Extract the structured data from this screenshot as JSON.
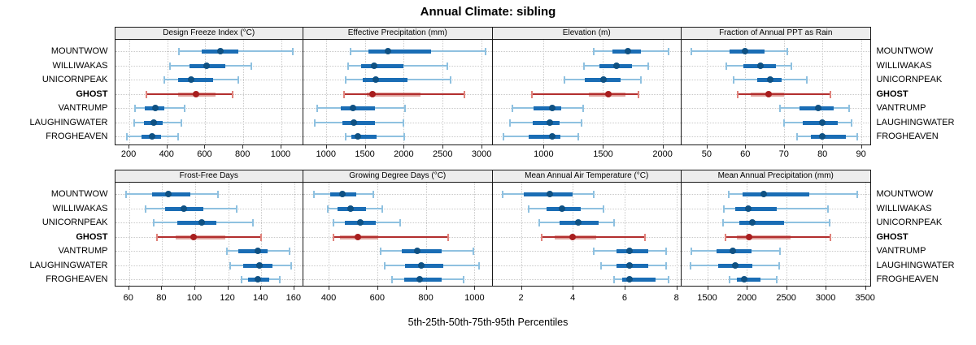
{
  "title": "Annual Climate: sibling",
  "caption": "5th-25th-50th-75th-95th Percentiles",
  "categories": [
    "MOUNTWOW",
    "WILLIWAKAS",
    "UNICORNPEAK",
    "GHOST",
    "VANTRUMP",
    "LAUGHINGWATER",
    "FROGHEAVEN"
  ],
  "highlight_category": "GHOST",
  "colors": {
    "blue_line": "#8fc1e0",
    "blue_cap": "#8fc1e0",
    "blue_box": "#1a6db5",
    "blue_dot": "#0f5183",
    "red_line": "#b22e2e",
    "red_cap": "#e0837c",
    "red_box": "#dfa09a",
    "red_dot": "#a81e1e",
    "grid": "#c9c9c9",
    "strip_bg": "#ededed",
    "border": "#1a1a1a"
  },
  "chart_data": {
    "type": "dot-interval-trellis",
    "percentile_labels": [
      "5th",
      "25th",
      "50th",
      "75th",
      "95th"
    ],
    "categories": [
      "MOUNTWOW",
      "WILLIWAKAS",
      "UNICORNPEAK",
      "GHOST",
      "VANTRUMP",
      "LAUGHINGWATER",
      "FROGHEAVEN"
    ],
    "panels": [
      {
        "title": "Design Freeze Index (°C)",
        "row": 0,
        "col": 0,
        "xlim": [
          125,
          1120
        ],
        "ticks": [
          200,
          400,
          600,
          800,
          1000
        ],
        "series": [
          {
            "name": "MOUNTWOW",
            "values": [
              460,
              580,
              680,
              775,
              1060
            ]
          },
          {
            "name": "WILLIWAKAS",
            "values": [
              415,
              515,
              605,
              705,
              840
            ]
          },
          {
            "name": "UNICORNPEAK",
            "values": [
              385,
              455,
              525,
              640,
              775
            ]
          },
          {
            "name": "GHOST",
            "values": [
              290,
              455,
              550,
              655,
              745
            ]
          },
          {
            "name": "VANTRUMP",
            "values": [
              230,
              280,
              335,
              385,
              490
            ]
          },
          {
            "name": "LAUGHINGWATER",
            "values": [
              225,
              275,
              330,
              375,
              475
            ]
          },
          {
            "name": "FROGHEAVEN",
            "values": [
              185,
              265,
              320,
              365,
              455
            ]
          }
        ]
      },
      {
        "title": "Effective Precipitation (mm)",
        "row": 0,
        "col": 1,
        "xlim": [
          710,
          3140
        ],
        "ticks": [
          1000,
          1500,
          2000,
          2500,
          3000
        ],
        "series": [
          {
            "name": "MOUNTWOW",
            "values": [
              1320,
              1550,
              1800,
              2350,
              3050
            ]
          },
          {
            "name": "WILLIWAKAS",
            "values": [
              1280,
              1450,
              1620,
              2000,
              2560
            ]
          },
          {
            "name": "UNICORNPEAK",
            "values": [
              1250,
              1470,
              1640,
              2050,
              2600
            ]
          },
          {
            "name": "GHOST",
            "values": [
              1230,
              1520,
              1600,
              2220,
              2780
            ]
          },
          {
            "name": "VANTRUMP",
            "values": [
              890,
              1190,
              1350,
              1630,
              2020
            ]
          },
          {
            "name": "LAUGHINGWATER",
            "values": [
              860,
              1210,
              1360,
              1630,
              2000
            ]
          },
          {
            "name": "FROGHEAVEN",
            "values": [
              1250,
              1330,
              1410,
              1650,
              2010
            ]
          }
        ]
      },
      {
        "title": "Elevation (m)",
        "row": 0,
        "col": 2,
        "xlim": [
          570,
          2160
        ],
        "ticks": [
          1000,
          1500,
          2000
        ],
        "series": [
          {
            "name": "MOUNTWOW",
            "values": [
              1420,
              1580,
              1710,
              1820,
              2050
            ]
          },
          {
            "name": "WILLIWAKAS",
            "values": [
              1340,
              1470,
              1610,
              1740,
              1880
            ]
          },
          {
            "name": "UNICORNPEAK",
            "values": [
              1175,
              1345,
              1505,
              1650,
              1815
            ]
          },
          {
            "name": "GHOST",
            "values": [
              900,
              1380,
              1545,
              1685,
              1800
            ]
          },
          {
            "name": "VANTRUMP",
            "values": [
              740,
              915,
              1070,
              1150,
              1330
            ]
          },
          {
            "name": "LAUGHINGWATER",
            "values": [
              720,
              910,
              1055,
              1135,
              1320
            ]
          },
          {
            "name": "FROGHEAVEN",
            "values": [
              660,
              875,
              1070,
              1140,
              1290
            ]
          }
        ]
      },
      {
        "title": "Fraction of Annual PPT as Rain",
        "row": 0,
        "col": 3,
        "xlim": [
          43.5,
          92.5
        ],
        "ticks": [
          50,
          60,
          70,
          80,
          90
        ],
        "series": [
          {
            "name": "MOUNTWOW",
            "values": [
              46,
              56,
              60,
              65,
              71
            ]
          },
          {
            "name": "WILLIWAKAS",
            "values": [
              55,
              59.5,
              64,
              68,
              72
            ]
          },
          {
            "name": "UNICORNPEAK",
            "values": [
              57,
              63,
              66.5,
              69.5,
              76
            ]
          },
          {
            "name": "GHOST",
            "values": [
              58,
              61.5,
              66,
              70,
              82
            ]
          },
          {
            "name": "VANTRUMP",
            "values": [
              69,
              74,
              79,
              83,
              87
            ]
          },
          {
            "name": "LAUGHINGWATER",
            "values": [
              70,
              75,
              80,
              84,
              87.5
            ]
          },
          {
            "name": "FROGHEAVEN",
            "values": [
              73.5,
              77,
              80,
              86,
              89
            ]
          }
        ]
      },
      {
        "title": "Frost-Free Days",
        "row": 1,
        "col": 0,
        "xlim": [
          51.5,
          166
        ],
        "ticks": [
          60,
          80,
          100,
          120,
          140,
          160
        ],
        "series": [
          {
            "name": "MOUNTWOW",
            "values": [
              58,
              74,
              84,
              97,
              114
            ]
          },
          {
            "name": "WILLIWAKAS",
            "values": [
              70,
              82,
              93,
              105,
              125
            ]
          },
          {
            "name": "UNICORNPEAK",
            "values": [
              75,
              89,
              104,
              113,
              135
            ]
          },
          {
            "name": "GHOST",
            "values": [
              77,
              88,
              99,
              118,
              140
            ]
          },
          {
            "name": "VANTRUMP",
            "values": [
              119,
              126,
              138,
              144,
              157
            ]
          },
          {
            "name": "LAUGHINGWATER",
            "values": [
              121,
              129,
              139,
              147,
              158
            ]
          },
          {
            "name": "FROGHEAVEN",
            "values": [
              128,
              132,
              138,
              145,
              151
            ]
          }
        ]
      },
      {
        "title": "Growing Degree Days (°C)",
        "row": 1,
        "col": 1,
        "xlim": [
          296,
          1074
        ],
        "ticks": [
          400,
          600,
          800,
          1000
        ],
        "series": [
          {
            "name": "MOUNTWOW",
            "values": [
              340,
              405,
              455,
              515,
              585
            ]
          },
          {
            "name": "WILLIWAKAS",
            "values": [
              395,
              437,
              490,
              555,
              620
            ]
          },
          {
            "name": "UNICORNPEAK",
            "values": [
              420,
              465,
              530,
              595,
              695
            ]
          },
          {
            "name": "GHOST",
            "values": [
              420,
              448,
              520,
              605,
              890
            ]
          },
          {
            "name": "VANTRUMP",
            "values": [
              615,
              700,
              765,
              865,
              995
            ]
          },
          {
            "name": "LAUGHINGWATER",
            "values": [
              630,
              715,
              780,
              870,
              1020
            ]
          },
          {
            "name": "FROGHEAVEN",
            "values": [
              660,
              710,
              775,
              865,
              955
            ]
          }
        ]
      },
      {
        "title": "Mean Annual Air Temperature (°C)",
        "row": 1,
        "col": 2,
        "xlim": [
          0.9,
          8.2
        ],
        "ticks": [
          2,
          4,
          6,
          8
        ],
        "series": [
          {
            "name": "MOUNTWOW",
            "values": [
              1.3,
              2.1,
              3.1,
              4.0,
              4.8
            ]
          },
          {
            "name": "WILLIWAKAS",
            "values": [
              2.3,
              3.0,
              3.6,
              4.3,
              5.2
            ]
          },
          {
            "name": "UNICORNPEAK",
            "values": [
              2.7,
              3.5,
              4.2,
              5.0,
              5.6
            ]
          },
          {
            "name": "GHOST",
            "values": [
              2.8,
              3.3,
              4.0,
              4.9,
              6.8
            ]
          },
          {
            "name": "VANTRUMP",
            "values": [
              4.8,
              5.7,
              6.2,
              6.9,
              7.6
            ]
          },
          {
            "name": "LAUGHINGWATER",
            "values": [
              5.1,
              5.7,
              6.2,
              6.9,
              7.6
            ]
          },
          {
            "name": "FROGHEAVEN",
            "values": [
              5.6,
              5.9,
              6.2,
              7.2,
              7.7
            ]
          }
        ]
      },
      {
        "title": "Mean Annual Precipitation (mm)",
        "row": 1,
        "col": 3,
        "xlim": [
          1175,
          3570
        ],
        "ticks": [
          1500,
          2000,
          2500,
          3000,
          3500
        ],
        "series": [
          {
            "name": "MOUNTWOW",
            "values": [
              1770,
              1950,
              2220,
              2790,
              3400
            ]
          },
          {
            "name": "WILLIWAKAS",
            "values": [
              1710,
              1860,
              2020,
              2380,
              3030
            ]
          },
          {
            "name": "UNICORNPEAK",
            "values": [
              1700,
              1910,
              2070,
              2470,
              3050
            ]
          },
          {
            "name": "GHOST",
            "values": [
              1730,
              1880,
              2030,
              2560,
              3060
            ]
          },
          {
            "name": "VANTRUMP",
            "values": [
              1300,
              1620,
              1820,
              2060,
              2420
            ]
          },
          {
            "name": "LAUGHINGWATER",
            "values": [
              1290,
              1640,
              1860,
              2070,
              2410
            ]
          },
          {
            "name": "FROGHEAVEN",
            "values": [
              1780,
              1880,
              1970,
              2170,
              2380
            ]
          }
        ]
      }
    ]
  }
}
